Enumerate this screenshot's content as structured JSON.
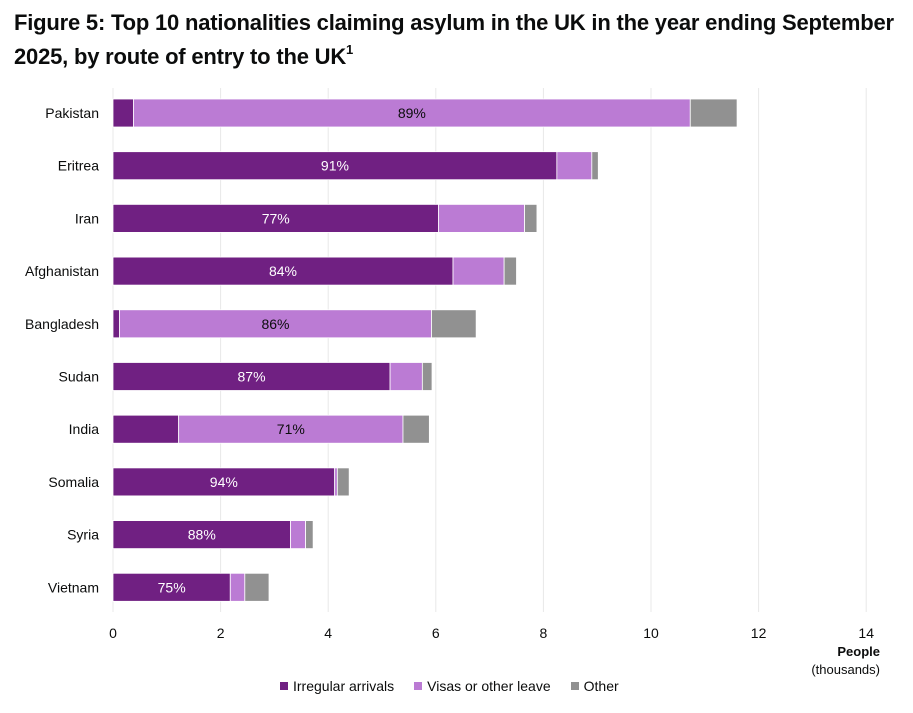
{
  "title": {
    "text": "Figure 5: Top 10 nationalities claiming asylum in the UK in the year ending September 2025, by route of entry to the UK",
    "footnote": "1"
  },
  "colors": {
    "irregular": "#702082",
    "visas": "#bb7bd4",
    "other": "#919191",
    "grid": "#e8e8e8",
    "label_dark": "#ffffff",
    "label_light": "#0b0c0c"
  },
  "chart_data": {
    "type": "bar",
    "orientation": "horizontal",
    "stacked": true,
    "title": "Figure 5: Top 10 nationalities claiming asylum in the UK in the year ending September 2025, by route of entry to the UK",
    "categories": [
      "Pakistan",
      "Eritrea",
      "Iran",
      "Afghanistan",
      "Bangladesh",
      "Sudan",
      "India",
      "Somalia",
      "Syria",
      "Vietnam"
    ],
    "series": [
      {
        "name": "Irregular arrivals",
        "values": [
          0.38,
          8.25,
          6.05,
          6.32,
          0.12,
          5.15,
          1.22,
          4.12,
          3.3,
          2.18
        ]
      },
      {
        "name": "Visas or other leave",
        "values": [
          10.35,
          0.65,
          1.6,
          0.95,
          5.8,
          0.6,
          4.17,
          0.05,
          0.28,
          0.27
        ]
      },
      {
        "name": "Other",
        "values": [
          0.87,
          0.12,
          0.23,
          0.23,
          0.83,
          0.18,
          0.49,
          0.22,
          0.14,
          0.45
        ]
      }
    ],
    "percent_labels": [
      "89%",
      "91%",
      "77%",
      "84%",
      "86%",
      "87%",
      "71%",
      "94%",
      "88%",
      "75%"
    ],
    "percent_label_series": [
      1,
      0,
      0,
      0,
      1,
      0,
      1,
      0,
      0,
      0
    ],
    "xlabel": "People",
    "xlabel_units": "(thousands)",
    "ylabel": "",
    "xlim": [
      0,
      14
    ],
    "xticks": [
      "0",
      "2",
      "4",
      "6",
      "8",
      "10",
      "12",
      "14"
    ],
    "grid": true,
    "legend_position": "bottom"
  }
}
